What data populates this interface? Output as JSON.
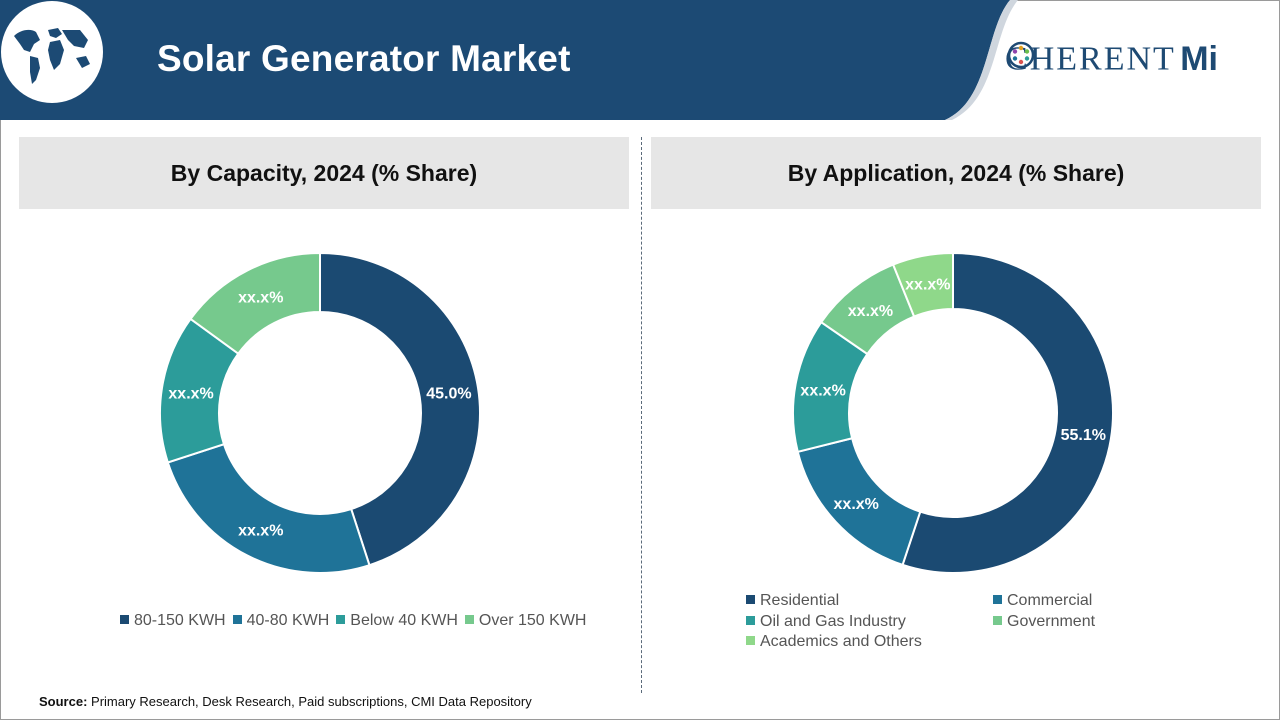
{
  "header": {
    "title": "Solar Generator Market",
    "logo_text_a": "C",
    "logo_text_b": "HERENT",
    "logo_mi": "Mi"
  },
  "colors": {
    "header_bg": "#1c4a74",
    "dark_blue": "#1b4a72",
    "mid_blue": "#1f7398",
    "teal": "#2c9c9a",
    "green": "#76c98d",
    "light_green": "#8fd88a",
    "panel_head_bg": "#e6e6e6"
  },
  "panels": {
    "left_title": "By Capacity, 2024 (% Share)",
    "right_title": "By Application, 2024 (% Share)"
  },
  "chart_data": [
    {
      "type": "pie",
      "title": "By Capacity, 2024 (% Share)",
      "donut": true,
      "legend_position": "bottom",
      "categories": [
        "80-150 KWH",
        "40-80 KWH",
        "Below 40 KWH",
        "Over 150 KWH"
      ],
      "values": [
        45.0,
        25.0,
        15.0,
        15.0
      ],
      "labels": [
        "45.0%",
        "xx.x%",
        "xx.x%",
        "xx.x%"
      ],
      "colors": [
        "#1b4a72",
        "#1f7398",
        "#2c9c9a",
        "#76c98d"
      ]
    },
    {
      "type": "pie",
      "title": "By Application, 2024 (% Share)",
      "donut": true,
      "legend_position": "bottom",
      "categories": [
        "Residential",
        "Commercial",
        "Oil and Gas Industry",
        "Government",
        "Academics and Others"
      ],
      "values": [
        55.1,
        16.0,
        13.5,
        9.3,
        6.1
      ],
      "labels": [
        "55.1%",
        "xx.x%",
        "xx.x%",
        "xx.x%",
        "xx.x%"
      ],
      "colors": [
        "#1b4a72",
        "#1f7398",
        "#2c9c9a",
        "#76c98d",
        "#8fd88a"
      ]
    }
  ],
  "source": {
    "label": "Source:",
    "text": " Primary Research, Desk Research, Paid subscriptions, CMI Data Repository"
  }
}
